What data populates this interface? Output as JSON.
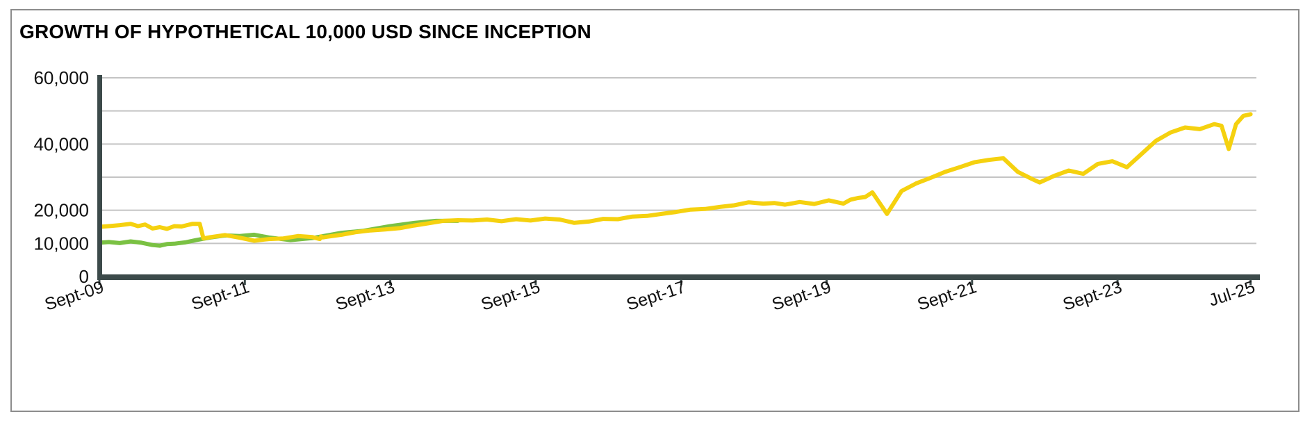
{
  "chart_data": {
    "type": "line",
    "title": "GROWTH OF HYPOTHETICAL 10,000 USD SINCE INCEPTION",
    "xlabel": "",
    "ylabel": "",
    "xlim": [
      2009.67,
      2025.58
    ],
    "ylim": [
      0,
      60000
    ],
    "y_ticks": [
      "60,000",
      "40,000",
      "20,000",
      "10,000",
      "0"
    ],
    "y_tick_values": [
      60000,
      40000,
      20000,
      10000,
      0
    ],
    "y_gridlines": [
      10000,
      20000,
      30000,
      40000,
      50000,
      60000
    ],
    "x_ticks": [
      "Sept-09",
      "Sept-11",
      "Sept-13",
      "Sept-15",
      "Sept-17",
      "Sept-19",
      "Sept-21",
      "Sept-23",
      "Jul-25"
    ],
    "x_tick_values": [
      2009.67,
      2011.67,
      2013.67,
      2015.67,
      2017.67,
      2019.67,
      2021.67,
      2023.67,
      2025.5
    ],
    "grid": true,
    "legend": "none",
    "series": [
      {
        "color": "#7ac143",
        "x": [
          2009.67,
          2009.8,
          2009.95,
          2010.1,
          2010.25,
          2010.4,
          2010.5,
          2010.6,
          2010.7,
          2010.85,
          2011.0,
          2011.2,
          2011.4,
          2011.6,
          2011.8,
          2012.0,
          2012.3,
          2012.6,
          2013.0,
          2013.3,
          2013.67,
          2014.0,
          2014.3,
          2014.6
        ],
        "y": [
          10200,
          10400,
          10100,
          10600,
          10200,
          9500,
          9300,
          9800,
          9900,
          10300,
          11000,
          11800,
          12400,
          12200,
          12600,
          11800,
          11000,
          11600,
          13200,
          13800,
          15200,
          16200,
          16800,
          16800
        ]
      },
      {
        "color": "#f5d10f",
        "x": [
          2009.67,
          2009.8,
          2009.95,
          2010.1,
          2010.2,
          2010.3,
          2010.4,
          2010.5,
          2010.6,
          2010.7,
          2010.8,
          2010.95,
          2011.05,
          2011.1,
          2011.2,
          2011.3,
          2011.4,
          2011.5,
          2011.6,
          2011.8,
          2012.0,
          2012.2,
          2012.4,
          2012.6,
          2012.7,
          2012.72,
          2012.74,
          2012.8,
          2013.0,
          2013.2,
          2013.4,
          2013.6,
          2013.8,
          2014.0,
          2014.2,
          2014.4,
          2014.6,
          2014.8,
          2015.0,
          2015.2,
          2015.4,
          2015.6,
          2015.8,
          2016.0,
          2016.2,
          2016.4,
          2016.6,
          2016.8,
          2017.0,
          2017.2,
          2017.4,
          2017.6,
          2017.8,
          2018.0,
          2018.2,
          2018.4,
          2018.6,
          2018.8,
          2018.95,
          2019.1,
          2019.3,
          2019.5,
          2019.7,
          2019.9,
          2020.0,
          2020.1,
          2020.2,
          2020.3,
          2020.5,
          2020.7,
          2020.9,
          2021.1,
          2021.3,
          2021.5,
          2021.7,
          2021.9,
          2022.1,
          2022.3,
          2022.5,
          2022.6,
          2022.8,
          2023.0,
          2023.2,
          2023.4,
          2023.6,
          2023.8,
          2024.0,
          2024.2,
          2024.4,
          2024.6,
          2024.8,
          2025.0,
          2025.1,
          2025.2,
          2025.3,
          2025.4,
          2025.5
        ],
        "y": [
          15000,
          15200,
          15500,
          15900,
          15200,
          15700,
          14500,
          14900,
          14400,
          15200,
          15100,
          15900,
          15900,
          11500,
          11900,
          12200,
          12500,
          12100,
          11700,
          10800,
          11300,
          11500,
          12200,
          11900,
          11300,
          12100,
          11800,
          12000,
          12600,
          13400,
          13900,
          14200,
          14600,
          15400,
          16100,
          16800,
          17000,
          16900,
          17200,
          16700,
          17300,
          16900,
          17500,
          17200,
          16200,
          16600,
          17400,
          17300,
          18100,
          18300,
          18900,
          19500,
          20200,
          20400,
          21000,
          21500,
          22400,
          22000,
          22200,
          21700,
          22500,
          21900,
          23000,
          22000,
          23200,
          23700,
          24000,
          25400,
          18900,
          25800,
          28100,
          29800,
          31600,
          33000,
          34500,
          35200,
          35700,
          31600,
          29400,
          28400,
          30400,
          32000,
          31000,
          34000,
          34800,
          33000,
          37000,
          41000,
          43500,
          45000,
          44500,
          46000,
          45500,
          38500,
          46000,
          48500,
          49000
        ]
      }
    ]
  }
}
